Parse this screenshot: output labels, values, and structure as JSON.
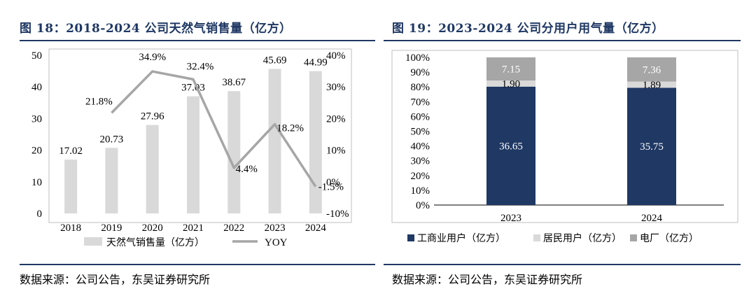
{
  "left": {
    "title": "图 18：2018-2024 公司天然气销售量（亿方）",
    "source": "数据来源：公司公告，东吴证券研究所"
  },
  "right": {
    "title": "图 19：2023-2024 公司分用户用气量（亿方）",
    "source": "数据来源：公司公告，东吴证券研究所"
  },
  "colors": {
    "title": "#1f3864",
    "bar_sales": "#d9d9d9",
    "line_yoy": "#a6a6a6",
    "commercial": "#1f3864",
    "residential": "#d9d9d9",
    "power": "#a6a6a6"
  },
  "chart_data": [
    {
      "type": "bar+line",
      "title": "2018-2024 公司天然气销售量（亿方）",
      "categories": [
        "2018",
        "2019",
        "2020",
        "2021",
        "2022",
        "2023",
        "2024"
      ],
      "series": [
        {
          "name": "天然气销售量（亿方）",
          "type": "bar",
          "axis": "left",
          "values": [
            17.02,
            20.73,
            27.96,
            37.03,
            38.67,
            45.69,
            44.99
          ],
          "labels": [
            "17.02",
            "20.73",
            "27.96",
            "37.03",
            "38.67",
            "45.69",
            "44.99"
          ]
        },
        {
          "name": "YOY",
          "type": "line",
          "axis": "right",
          "values": [
            null,
            21.8,
            34.9,
            32.4,
            4.4,
            18.2,
            -1.5
          ],
          "labels": [
            null,
            "21.8%",
            "34.9%",
            "32.4%",
            "4.4%",
            "18.2%",
            "-1.5%"
          ]
        }
      ],
      "y_left": {
        "min": 0,
        "max": 50,
        "ticks": [
          "0",
          "10",
          "20",
          "30",
          "40",
          "50"
        ]
      },
      "y_right": {
        "min": -10,
        "max": 40,
        "ticks": [
          "-10%",
          "0%",
          "10%",
          "20%",
          "30%",
          "40%"
        ]
      },
      "legend": [
        "天然气销售量（亿方）",
        "YOY"
      ],
      "legend_position": "bottom"
    },
    {
      "type": "stacked-bar-100",
      "title": "2023-2024 公司分用户用气量（亿方）",
      "categories": [
        "2023",
        "2024"
      ],
      "series": [
        {
          "name": "工商业用户（亿方）",
          "values": [
            36.65,
            35.75
          ],
          "labels": [
            "36.65",
            "35.75"
          ]
        },
        {
          "name": "居民用户（亿方）",
          "values": [
            1.9,
            1.89
          ],
          "labels": [
            "1.90",
            "1.89"
          ]
        },
        {
          "name": "电厂（亿方）",
          "values": [
            7.15,
            7.36
          ],
          "labels": [
            "7.15",
            "7.36"
          ]
        }
      ],
      "y": {
        "min": 0,
        "max": 100,
        "ticks": [
          "0%",
          "10%",
          "20%",
          "30%",
          "40%",
          "50%",
          "60%",
          "70%",
          "80%",
          "90%",
          "100%"
        ]
      },
      "legend": [
        "工商业用户（亿方）",
        "居民用户（亿方）",
        "电厂（亿方）"
      ],
      "legend_position": "bottom"
    }
  ]
}
